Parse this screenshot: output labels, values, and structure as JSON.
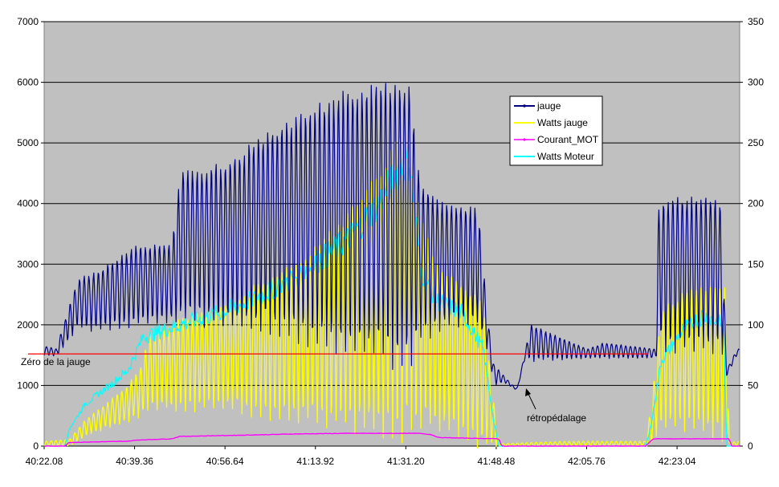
{
  "chart_data": {
    "type": "line",
    "title": "",
    "xlabel": "",
    "ylabel": "",
    "ylim_left": [
      0,
      7000
    ],
    "ylim_right": [
      0,
      350
    ],
    "y_ticks_left": [
      "0",
      "1000",
      "2000",
      "3000",
      "4000",
      "5000",
      "6000",
      "7000"
    ],
    "y_ticks_right": [
      "0",
      "50",
      "100",
      "150",
      "200",
      "250",
      "300",
      "350"
    ],
    "x_ticks": [
      "40:22.08",
      "40:39.36",
      "40:56.64",
      "41:13.92",
      "41:31.20",
      "41:48.48",
      "42:05.76",
      "42:23.04"
    ],
    "x_range_seconds": [
      2422.08,
      2555.0
    ],
    "grid": "horizontal",
    "legend_position": "top-right",
    "background": "#c0c0c0",
    "series": [
      {
        "name": "jauge",
        "axis": "left",
        "color": "#000080",
        "envelope": {
          "x": [
            2422.08,
            2424.5,
            2424.7,
            2428.5,
            2432.0,
            2440.0,
            2446.5,
            2448.2,
            2456.0,
            2464.0,
            2472.0,
            2480.0,
            2487.0,
            2490.5,
            2492.0,
            2494.0,
            2496.0,
            2498.0,
            2505.0,
            2507.0,
            2508.0,
            2510.0,
            2512.0,
            2512.5,
            2514.0,
            2515.0,
            2526.0,
            2527.5,
            2529.0,
            2539.0,
            2539.5,
            2542.0,
            2550.0,
            2551.5,
            2552.5,
            2554.5
          ],
          "peaks": [
            1650,
            1600,
            1700,
            2750,
            2850,
            3300,
            3300,
            4550,
            4600,
            5100,
            5500,
            5800,
            5950,
            6000,
            5900,
            4200,
            4200,
            4000,
            3900,
            2000,
            1350,
            1150,
            970,
            960,
            1550,
            2000,
            1600,
            1650,
            1700,
            1600,
            3950,
            4100,
            4100,
            4000,
            1250,
            1600
          ],
          "troughs": [
            1500,
            1480,
            1500,
            1950,
            1900,
            2000,
            2050,
            2050,
            2000,
            1900,
            1700,
            1500,
            1400,
            1300,
            1300,
            1800,
            1850,
            1950,
            2000,
            1550,
            1000,
            1050,
            940,
            930,
            1450,
            1400,
            1450,
            1450,
            1450,
            1450,
            1650,
            1600,
            1550,
            1550,
            1150,
            1500
          ]
        }
      },
      {
        "name": "Watts jauge",
        "axis": "right",
        "color": "#ffff00",
        "envelope": {
          "x": [
            2422.08,
            2426.0,
            2427.0,
            2430.0,
            2434.0,
            2438.0,
            2440.5,
            2442.0,
            2448.0,
            2456.0,
            2464.0,
            2472.0,
            2480.0,
            2486.0,
            2490.0,
            2492.0,
            2494.0,
            2497.0,
            2502.0,
            2506.0,
            2508.0,
            2509.0,
            2522.0,
            2537.0,
            2538.0,
            2540.0,
            2544.0,
            2549.0,
            2552.5,
            2553.0,
            2555.0
          ],
          "peaks": [
            4,
            5,
            6,
            22,
            35,
            50,
            65,
            90,
            105,
            115,
            135,
            155,
            190,
            225,
            260,
            275,
            190,
            150,
            135,
            115,
            35,
            2,
            4,
            4,
            30,
            110,
            125,
            130,
            130,
            3,
            4
          ],
          "troughs": [
            0,
            0,
            0,
            8,
            15,
            20,
            25,
            30,
            30,
            30,
            25,
            20,
            15,
            10,
            5,
            5,
            15,
            15,
            5,
            0,
            0,
            0,
            0,
            0,
            0,
            15,
            15,
            10,
            5,
            0,
            0
          ]
        }
      },
      {
        "name": "Courant_MOT",
        "axis": "right",
        "color": "#ff00ff",
        "x": [
          2422.08,
          2426.0,
          2426.8,
          2438.0,
          2440.0,
          2446.5,
          2448.0,
          2460.0,
          2470.0,
          2480.0,
          2490.0,
          2494.0,
          2496.0,
          2497.5,
          2509.0,
          2509.5,
          2537.0,
          2538.5,
          2553.0,
          2553.5,
          2555.0
        ],
        "y": [
          0,
          0,
          3,
          4,
          5,
          6,
          8,
          9,
          10,
          10.5,
          10.5,
          10.5,
          9.5,
          7,
          6,
          0,
          0,
          6,
          6,
          0,
          0
        ]
      },
      {
        "name": "Watts Moteur",
        "axis": "right",
        "color": "#00ffff",
        "x": [
          2422.08,
          2426.0,
          2427.0,
          2430.0,
          2434.0,
          2438.0,
          2441.0,
          2448.0,
          2456.0,
          2464.0,
          2472.0,
          2480.0,
          2486.0,
          2490.0,
          2492.0,
          2494.0,
          2497.0,
          2502.0,
          2506.0,
          2508.0,
          2509.0,
          2537.0,
          2538.0,
          2540.0,
          2544.0,
          2548.0,
          2552.0,
          2552.5,
          2555.0
        ],
        "y": [
          0,
          0,
          15,
          35,
          48,
          62,
          90,
          100,
          110,
          125,
          145,
          170,
          200,
          230,
          235,
          145,
          120,
          110,
          80,
          20,
          0,
          0,
          15,
          70,
          95,
          108,
          100,
          0,
          0
        ]
      }
    ],
    "reference_lines": [
      {
        "name": "Zéro de la jauge",
        "axis": "left",
        "y": 1520,
        "x_range": [
          2419.0,
          2537.5
        ],
        "color": "#ff0000"
      }
    ],
    "annotations": [
      {
        "text": "Zéro de la jauge"
      },
      {
        "text": "rétropédalage"
      }
    ]
  }
}
